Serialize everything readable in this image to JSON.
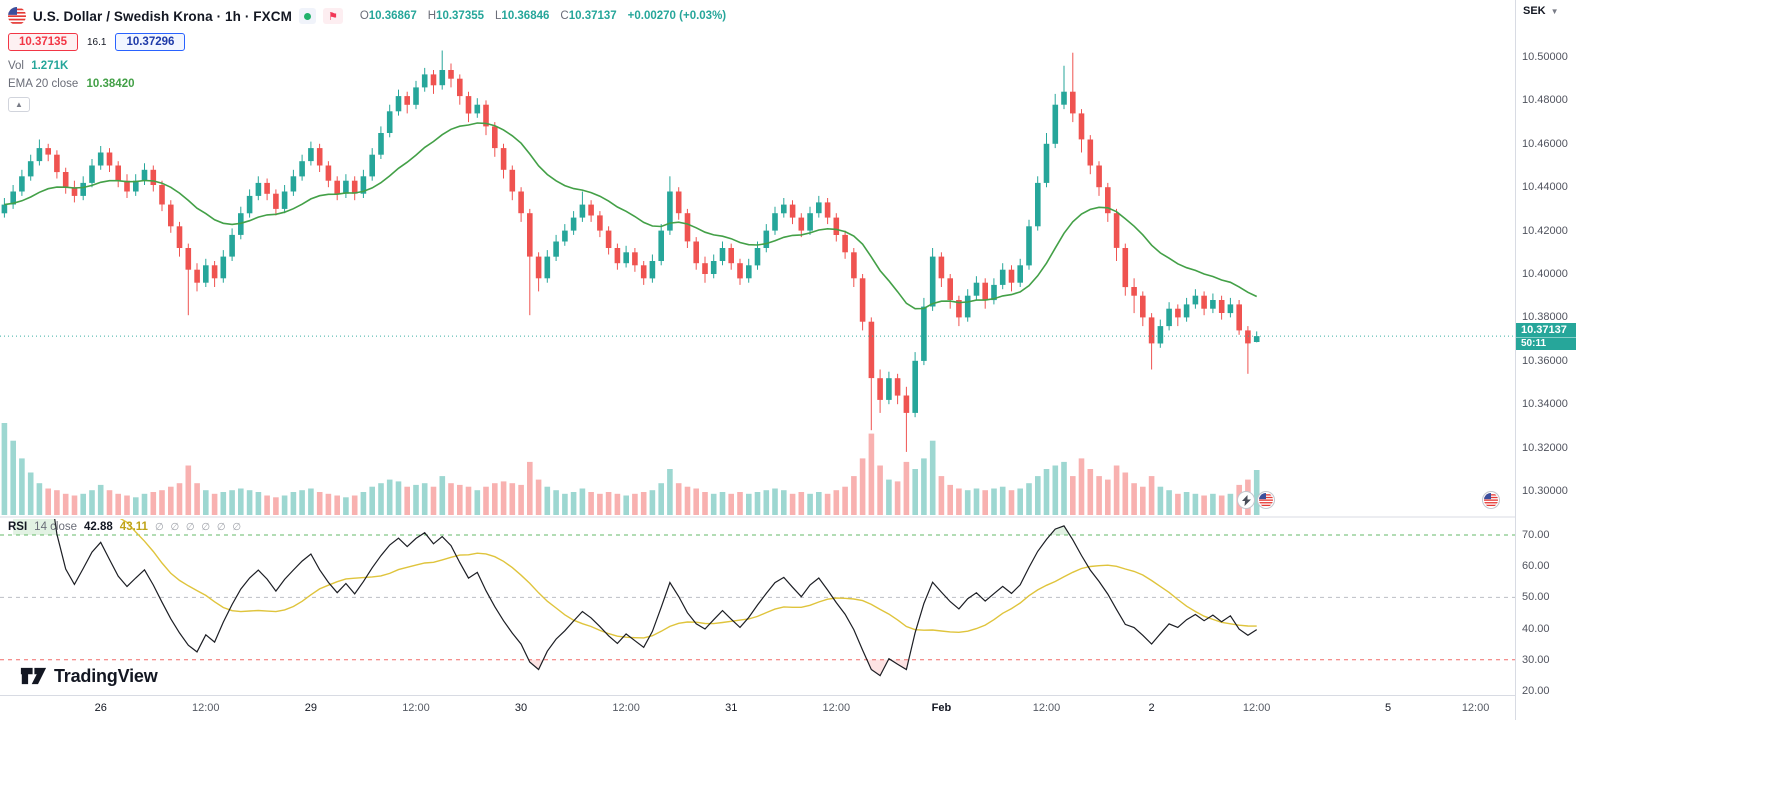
{
  "header": {
    "symbol_title": "U.S. Dollar / Swedish Krona · 1h · FXCM",
    "ohlc": [
      {
        "label": "O",
        "value": "10.36867"
      },
      {
        "label": "H",
        "value": "10.37355"
      },
      {
        "label": "L",
        "value": "10.36846"
      },
      {
        "label": "C",
        "value": "10.37137"
      }
    ],
    "change": "+0.00270 (+0.03%)",
    "sell_price": "10.37135",
    "spread": "16.1",
    "buy_price": "10.37296",
    "volume_label": "Vol",
    "volume_value": "1.271K",
    "ema_label": "EMA 20 close",
    "ema_value": "10.38420"
  },
  "rsi_legend": {
    "name": "RSI",
    "params": "14 close",
    "value": "42.88",
    "ma_value": "43.11",
    "empty_values": "∅ ∅ ∅ ∅ ∅ ∅"
  },
  "logo": {
    "text": "TradingView"
  },
  "price_axis": {
    "currency": "SEK",
    "ticks": [
      "10.50000",
      "10.48000",
      "10.46000",
      "10.44000",
      "10.42000",
      "10.40000",
      "10.38000",
      "10.36000",
      "10.34000",
      "10.32000",
      "10.30000"
    ],
    "rsi_ticks": [
      "70.00",
      "60.00",
      "50.00",
      "40.00",
      "30.00",
      "20.00"
    ],
    "last_price": "10.37137",
    "countdown": "50:11"
  },
  "time_axis": {
    "labels": [
      {
        "text": "26",
        "slot": 11,
        "kind": "day"
      },
      {
        "text": "12:00",
        "slot": 23,
        "kind": "time"
      },
      {
        "text": "29",
        "slot": 35,
        "kind": "day"
      },
      {
        "text": "12:00",
        "slot": 47,
        "kind": "time"
      },
      {
        "text": "30",
        "slot": 59,
        "kind": "day"
      },
      {
        "text": "12:00",
        "slot": 71,
        "kind": "time"
      },
      {
        "text": "31",
        "slot": 83,
        "kind": "day"
      },
      {
        "text": "12:00",
        "slot": 95,
        "kind": "time"
      },
      {
        "text": "Feb",
        "slot": 107,
        "kind": "month"
      },
      {
        "text": "12:00",
        "slot": 119,
        "kind": "time"
      },
      {
        "text": "2",
        "slot": 131,
        "kind": "day"
      },
      {
        "text": "12:00",
        "slot": 143,
        "kind": "time"
      },
      {
        "text": "5",
        "slot": 158,
        "kind": "day"
      },
      {
        "text": "12:00",
        "slot": 168,
        "kind": "time"
      }
    ]
  },
  "colors": {
    "up": "#26a69a",
    "down": "#ef5350",
    "ema": "#43a047",
    "rsi_line": "#1c1e24",
    "rsi_ma": "#dfc43c",
    "rsi_upper": "#4caf50",
    "rsi_middle": "#b0b3bc",
    "rsi_lower": "#f05350",
    "oversold_fill": "#ef5350",
    "overbought_fill": "#4caf50",
    "axis_border": "#d8dbe3",
    "badge": "#26a69a",
    "sell": "#f23645",
    "buy": "#2962ff"
  },
  "chart_data": {
    "type": "candlestick",
    "title": "U.S. Dollar / Swedish Krona",
    "symbol": "USDSEK",
    "interval": "1h",
    "exchange": "FXCM",
    "price_range": [
      10.3,
      10.5
    ],
    "rsi_range": [
      20,
      70
    ],
    "rsi_levels": [
      70,
      50,
      30
    ],
    "time_slots_total": 173,
    "indicators": {
      "ema": {
        "period": 20
      },
      "rsi": {
        "period": 14
      },
      "volume": {
        "unit": "K"
      }
    },
    "candles": [
      [
        10.428,
        10.435,
        10.426,
        10.432
      ],
      [
        10.432,
        10.441,
        10.43,
        10.438
      ],
      [
        10.438,
        10.448,
        10.436,
        10.445
      ],
      [
        10.445,
        10.455,
        10.443,
        10.452
      ],
      [
        10.452,
        10.462,
        10.45,
        10.458
      ],
      [
        10.458,
        10.46,
        10.452,
        10.455
      ],
      [
        10.455,
        10.457,
        10.444,
        10.447
      ],
      [
        10.447,
        10.449,
        10.437,
        10.44
      ],
      [
        10.44,
        10.443,
        10.433,
        10.436
      ],
      [
        10.436,
        10.445,
        10.434,
        10.442
      ],
      [
        10.442,
        10.453,
        10.44,
        10.45
      ],
      [
        10.45,
        10.459,
        10.448,
        10.456
      ],
      [
        10.456,
        10.458,
        10.447,
        10.45
      ],
      [
        10.45,
        10.452,
        10.44,
        10.443
      ],
      [
        10.443,
        10.446,
        10.435,
        10.438
      ],
      [
        10.438,
        10.446,
        10.436,
        10.443
      ],
      [
        10.443,
        10.451,
        10.441,
        10.448
      ],
      [
        10.448,
        10.45,
        10.438,
        10.441
      ],
      [
        10.441,
        10.443,
        10.429,
        10.432
      ],
      [
        10.432,
        10.434,
        10.419,
        10.422
      ],
      [
        10.422,
        10.424,
        10.408,
        10.412
      ],
      [
        10.412,
        10.414,
        10.381,
        10.402
      ],
      [
        10.402,
        10.405,
        10.392,
        10.396
      ],
      [
        10.396,
        10.407,
        10.394,
        10.404
      ],
      [
        10.404,
        10.406,
        10.394,
        10.398
      ],
      [
        10.398,
        10.411,
        10.396,
        10.408
      ],
      [
        10.408,
        10.421,
        10.406,
        10.418
      ],
      [
        10.418,
        10.431,
        10.416,
        10.428
      ],
      [
        10.428,
        10.439,
        10.426,
        10.436
      ],
      [
        10.436,
        10.445,
        10.434,
        10.442
      ],
      [
        10.442,
        10.444,
        10.434,
        10.437
      ],
      [
        10.437,
        10.439,
        10.427,
        10.43
      ],
      [
        10.43,
        10.441,
        10.428,
        10.438
      ],
      [
        10.438,
        10.448,
        10.436,
        10.445
      ],
      [
        10.445,
        10.455,
        10.443,
        10.452
      ],
      [
        10.452,
        10.461,
        10.45,
        10.458
      ],
      [
        10.458,
        10.46,
        10.447,
        10.45
      ],
      [
        10.45,
        10.452,
        10.44,
        10.443
      ],
      [
        10.443,
        10.445,
        10.434,
        10.437
      ],
      [
        10.437,
        10.446,
        10.435,
        10.443
      ],
      [
        10.443,
        10.445,
        10.434,
        10.437
      ],
      [
        10.437,
        10.448,
        10.435,
        10.445
      ],
      [
        10.445,
        10.458,
        10.443,
        10.455
      ],
      [
        10.455,
        10.468,
        10.453,
        10.465
      ],
      [
        10.465,
        10.478,
        10.463,
        10.475
      ],
      [
        10.475,
        10.485,
        10.473,
        10.482
      ],
      [
        10.482,
        10.484,
        10.474,
        10.478
      ],
      [
        10.478,
        10.489,
        10.476,
        10.486
      ],
      [
        10.486,
        10.495,
        10.484,
        10.492
      ],
      [
        10.492,
        10.494,
        10.483,
        10.487
      ],
      [
        10.487,
        10.503,
        10.485,
        10.494
      ],
      [
        10.494,
        10.497,
        10.486,
        10.49
      ],
      [
        10.49,
        10.492,
        10.478,
        10.482
      ],
      [
        10.482,
        10.484,
        10.47,
        10.474
      ],
      [
        10.474,
        10.481,
        10.472,
        10.478
      ],
      [
        10.478,
        10.48,
        10.464,
        10.468
      ],
      [
        10.468,
        10.47,
        10.454,
        10.458
      ],
      [
        10.458,
        10.46,
        10.444,
        10.448
      ],
      [
        10.448,
        10.45,
        10.434,
        10.438
      ],
      [
        10.438,
        10.44,
        10.424,
        10.428
      ],
      [
        10.428,
        10.43,
        10.381,
        10.408
      ],
      [
        10.408,
        10.41,
        10.392,
        10.398
      ],
      [
        10.398,
        10.411,
        10.396,
        10.408
      ],
      [
        10.408,
        10.418,
        10.406,
        10.415
      ],
      [
        10.415,
        10.423,
        10.413,
        10.42
      ],
      [
        10.42,
        10.429,
        10.418,
        10.426
      ],
      [
        10.426,
        10.438,
        10.424,
        10.432
      ],
      [
        10.432,
        10.434,
        10.424,
        10.427
      ],
      [
        10.427,
        10.429,
        10.417,
        10.42
      ],
      [
        10.42,
        10.422,
        10.409,
        10.412
      ],
      [
        10.412,
        10.414,
        10.402,
        10.405
      ],
      [
        10.405,
        10.413,
        10.403,
        10.41
      ],
      [
        10.41,
        10.412,
        10.401,
        10.404
      ],
      [
        10.404,
        10.406,
        10.395,
        10.398
      ],
      [
        10.398,
        10.409,
        10.396,
        10.406
      ],
      [
        10.406,
        10.423,
        10.404,
        10.42
      ],
      [
        10.42,
        10.445,
        10.418,
        10.438
      ],
      [
        10.438,
        10.44,
        10.425,
        10.428
      ],
      [
        10.428,
        10.43,
        10.412,
        10.415
      ],
      [
        10.415,
        10.417,
        10.402,
        10.405
      ],
      [
        10.405,
        10.408,
        10.396,
        10.4
      ],
      [
        10.4,
        10.409,
        10.398,
        10.406
      ],
      [
        10.406,
        10.415,
        10.404,
        10.412
      ],
      [
        10.412,
        10.414,
        10.402,
        10.405
      ],
      [
        10.405,
        10.407,
        10.395,
        10.398
      ],
      [
        10.398,
        10.407,
        10.396,
        10.404
      ],
      [
        10.404,
        10.415,
        10.402,
        10.412
      ],
      [
        10.412,
        10.423,
        10.41,
        10.42
      ],
      [
        10.42,
        10.431,
        10.418,
        10.428
      ],
      [
        10.428,
        10.435,
        10.426,
        10.432
      ],
      [
        10.432,
        10.434,
        10.423,
        10.426
      ],
      [
        10.426,
        10.428,
        10.417,
        10.42
      ],
      [
        10.42,
        10.431,
        10.418,
        10.428
      ],
      [
        10.428,
        10.436,
        10.426,
        10.433
      ],
      [
        10.433,
        10.435,
        10.423,
        10.426
      ],
      [
        10.426,
        10.428,
        10.415,
        10.418
      ],
      [
        10.418,
        10.42,
        10.407,
        10.41
      ],
      [
        10.41,
        10.412,
        10.394,
        10.398
      ],
      [
        10.398,
        10.4,
        10.374,
        10.378
      ],
      [
        10.378,
        10.38,
        10.328,
        10.352
      ],
      [
        10.352,
        10.356,
        10.336,
        10.342
      ],
      [
        10.342,
        10.355,
        10.34,
        10.352
      ],
      [
        10.352,
        10.354,
        10.34,
        10.344
      ],
      [
        10.344,
        10.348,
        10.318,
        10.336
      ],
      [
        10.336,
        10.364,
        10.334,
        10.36
      ],
      [
        10.36,
        10.389,
        10.358,
        10.385
      ],
      [
        10.385,
        10.412,
        10.383,
        10.408
      ],
      [
        10.408,
        10.41,
        10.394,
        10.398
      ],
      [
        10.398,
        10.4,
        10.384,
        10.388
      ],
      [
        10.388,
        10.39,
        10.376,
        10.38
      ],
      [
        10.38,
        10.393,
        10.378,
        10.39
      ],
      [
        10.39,
        10.399,
        10.388,
        10.396
      ],
      [
        10.396,
        10.398,
        10.384,
        10.388
      ],
      [
        10.388,
        10.398,
        10.386,
        10.395
      ],
      [
        10.395,
        10.405,
        10.393,
        10.402
      ],
      [
        10.402,
        10.404,
        10.392,
        10.396
      ],
      [
        10.396,
        10.407,
        10.394,
        10.404
      ],
      [
        10.404,
        10.425,
        10.402,
        10.422
      ],
      [
        10.422,
        10.445,
        10.42,
        10.442
      ],
      [
        10.442,
        10.465,
        10.44,
        10.46
      ],
      [
        10.46,
        10.483,
        10.458,
        10.478
      ],
      [
        10.478,
        10.496,
        10.476,
        10.484
      ],
      [
        10.484,
        10.502,
        10.47,
        10.474
      ],
      [
        10.474,
        10.476,
        10.456,
        10.462
      ],
      [
        10.462,
        10.464,
        10.446,
        10.45
      ],
      [
        10.45,
        10.452,
        10.436,
        10.44
      ],
      [
        10.44,
        10.442,
        10.424,
        10.428
      ],
      [
        10.428,
        10.43,
        10.406,
        10.412
      ],
      [
        10.412,
        10.414,
        10.39,
        10.394
      ],
      [
        10.394,
        10.398,
        10.382,
        10.39
      ],
      [
        10.39,
        10.392,
        10.376,
        10.38
      ],
      [
        10.38,
        10.382,
        10.356,
        10.368
      ],
      [
        10.368,
        10.379,
        10.366,
        10.376
      ],
      [
        10.376,
        10.387,
        10.374,
        10.384
      ],
      [
        10.384,
        10.386,
        10.376,
        10.38
      ],
      [
        10.38,
        10.389,
        10.378,
        10.386
      ],
      [
        10.386,
        10.393,
        10.384,
        10.39
      ],
      [
        10.39,
        10.392,
        10.381,
        10.384
      ],
      [
        10.384,
        10.391,
        10.382,
        10.388
      ],
      [
        10.388,
        10.39,
        10.379,
        10.382
      ],
      [
        10.382,
        10.389,
        10.38,
        10.386
      ],
      [
        10.386,
        10.388,
        10.372,
        10.374
      ],
      [
        10.374,
        10.376,
        10.354,
        10.368
      ],
      [
        10.36867,
        10.37355,
        10.36846,
        10.37137
      ]
    ],
    "volumes": [
      2.6,
      2.1,
      1.6,
      1.2,
      0.9,
      0.75,
      0.7,
      0.6,
      0.55,
      0.6,
      0.7,
      0.85,
      0.7,
      0.6,
      0.55,
      0.5,
      0.6,
      0.65,
      0.7,
      0.8,
      0.9,
      1.4,
      0.9,
      0.7,
      0.6,
      0.65,
      0.7,
      0.75,
      0.7,
      0.65,
      0.55,
      0.5,
      0.55,
      0.65,
      0.7,
      0.75,
      0.65,
      0.6,
      0.55,
      0.5,
      0.55,
      0.65,
      0.8,
      0.9,
      1.0,
      0.95,
      0.8,
      0.85,
      0.9,
      0.8,
      1.1,
      0.9,
      0.85,
      0.8,
      0.7,
      0.8,
      0.9,
      0.95,
      0.9,
      0.85,
      1.5,
      1.0,
      0.8,
      0.7,
      0.6,
      0.65,
      0.75,
      0.65,
      0.6,
      0.65,
      0.6,
      0.55,
      0.6,
      0.65,
      0.7,
      0.9,
      1.3,
      0.9,
      0.8,
      0.75,
      0.65,
      0.6,
      0.65,
      0.6,
      0.65,
      0.6,
      0.65,
      0.7,
      0.75,
      0.7,
      0.6,
      0.65,
      0.6,
      0.65,
      0.6,
      0.7,
      0.8,
      1.1,
      1.6,
      2.3,
      1.4,
      1.0,
      0.95,
      1.5,
      1.3,
      1.6,
      2.1,
      1.1,
      0.85,
      0.75,
      0.7,
      0.75,
      0.7,
      0.75,
      0.8,
      0.7,
      0.75,
      0.9,
      1.1,
      1.3,
      1.4,
      1.5,
      1.1,
      1.6,
      1.3,
      1.1,
      1.0,
      1.4,
      1.2,
      0.9,
      0.8,
      1.1,
      0.8,
      0.7,
      0.6,
      0.65,
      0.6,
      0.55,
      0.6,
      0.55,
      0.6,
      0.85,
      1.0,
      1.271
    ]
  }
}
